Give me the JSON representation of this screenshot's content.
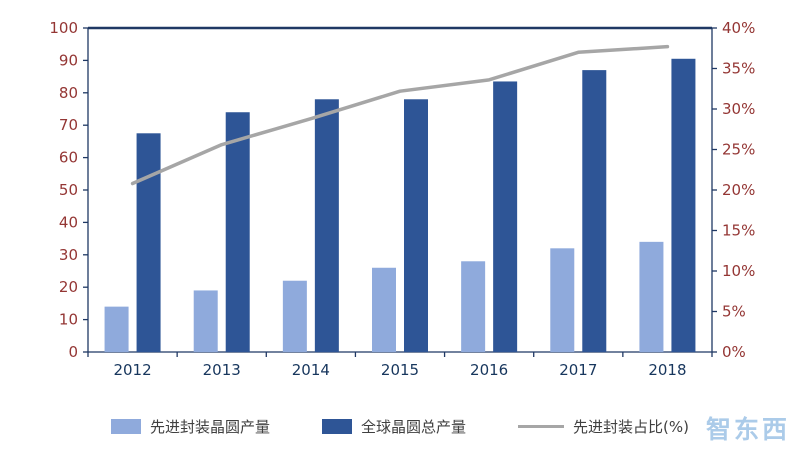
{
  "palette": {
    "light_bar": "#8FAADC",
    "dark_bar": "#2E5596",
    "line": "#A6A6A6",
    "axis": "#1F3864",
    "y_label_color": "#943634",
    "x_label_color": "#17365D",
    "legend_text_color": "#404040",
    "watermark_color": "#9DC3E6"
  },
  "chart_data": {
    "type": "bar",
    "title": "",
    "grid": false,
    "legend_position": "bottom",
    "categories": [
      "2012",
      "2013",
      "2014",
      "2015",
      "2016",
      "2017",
      "2018"
    ],
    "series": [
      {
        "name": "先进封装晶圆产量",
        "type": "bar",
        "axis": "left",
        "color": "#8FAADC",
        "values": [
          14,
          19,
          22,
          26,
          28,
          32,
          34
        ]
      },
      {
        "name": "全球晶圆总产量",
        "type": "bar",
        "axis": "left",
        "color": "#2E5596",
        "values": [
          67.5,
          74,
          78,
          78,
          83.5,
          87,
          90.5
        ]
      },
      {
        "name": "先进封装占比(%)",
        "type": "line",
        "axis": "right",
        "color": "#A6A6A6",
        "values": [
          20.8,
          25.6,
          28.8,
          32.2,
          33.6,
          37.0,
          37.7
        ]
      }
    ],
    "left_axis": {
      "min": 0,
      "max": 100,
      "step": 10,
      "labels": [
        "0",
        "10",
        "20",
        "30",
        "40",
        "50",
        "60",
        "70",
        "80",
        "90",
        "100"
      ]
    },
    "right_axis": {
      "min": 0,
      "max": 40,
      "step": 5,
      "labels": [
        "0%",
        "5%",
        "10%",
        "15%",
        "20%",
        "25%",
        "30%",
        "35%",
        "40%"
      ]
    }
  },
  "watermark": {
    "text": "智东西"
  }
}
